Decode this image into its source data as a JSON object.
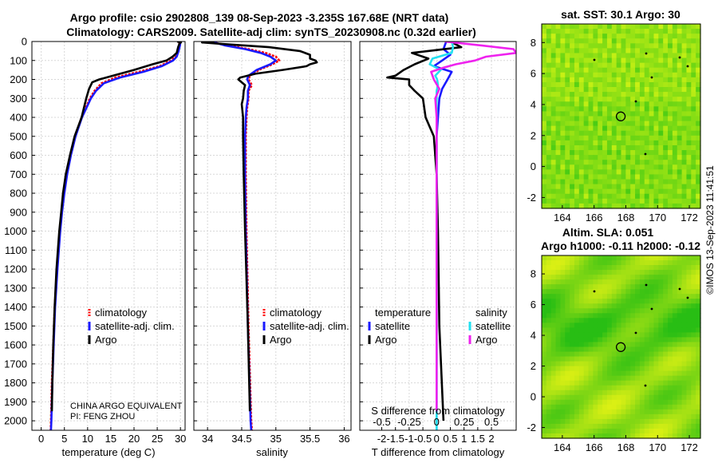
{
  "title_line1": "Argo profile: csio 2902808_139 08-Sep-2023 -3.235S 167.68E (NRT data)",
  "title_line2": "Climatology: CARS2009. Satellite-adj clim: synTS_20230908.nc (0.32d earlier)",
  "watermark": "©IMOS 13-Sep-2023 11:41:51",
  "pi_line1": "CHINA ARGO EQUIVALENT",
  "pi_line2": "PI: FENG ZHOU",
  "colors": {
    "climatology": "#ff0000",
    "satadj": "#1a1aff",
    "argo": "#000000",
    "sat_t": "#1a1aff",
    "sat_s": "#22e0f0",
    "argo_s": "#ee22ee"
  },
  "chart_data": [
    {
      "id": "temperature",
      "type": "line",
      "xlabel": "temperature (deg C)",
      "xlim": [
        -2,
        31
      ],
      "ylim": [
        2050,
        0
      ],
      "xticks": [
        "0",
        "5",
        "10",
        "15",
        "20",
        "25",
        "30"
      ],
      "yticks": [
        "0",
        "100",
        "200",
        "300",
        "400",
        "500",
        "600",
        "700",
        "800",
        "900",
        "1000",
        "1100",
        "1200",
        "1300",
        "1400",
        "1500",
        "1600",
        "1700",
        "1800",
        "1900",
        "2000"
      ],
      "legend": [
        "climatology",
        "satellite-adj. clim.",
        "Argo"
      ],
      "series": [
        {
          "name": "climatology",
          "depth": [
            0,
            20,
            50,
            80,
            100,
            130,
            160,
            190,
            220,
            260,
            300,
            400,
            500,
            600,
            700,
            800,
            900,
            1000,
            1200,
            1400,
            1600,
            1800,
            2000,
            2050
          ],
          "values": [
            29.8,
            29.7,
            29.5,
            29.0,
            28.0,
            25.5,
            21.0,
            16.0,
            13.0,
            11.5,
            10.5,
            8.7,
            7.3,
            6.3,
            5.5,
            4.9,
            4.4,
            4.0,
            3.4,
            2.9,
            2.6,
            2.3,
            2.1,
            2.05
          ]
        },
        {
          "name": "satellite-adj. clim.",
          "depth": [
            0,
            20,
            50,
            80,
            100,
            130,
            160,
            190,
            220,
            260,
            300,
            400,
            500,
            600,
            700,
            800,
            900,
            1000,
            1200,
            1400,
            1600,
            1800,
            2000,
            2050
          ],
          "values": [
            30.0,
            29.9,
            29.6,
            29.2,
            28.4,
            26.0,
            22.0,
            17.0,
            13.5,
            11.8,
            10.7,
            8.8,
            7.4,
            6.4,
            5.6,
            5.0,
            4.5,
            4.1,
            3.5,
            3.0,
            2.7,
            2.4,
            2.2,
            2.1
          ]
        },
        {
          "name": "Argo",
          "depth": [
            0,
            5,
            10,
            30,
            60,
            80,
            100,
            120,
            150,
            180,
            200,
            215,
            250,
            300,
            350,
            400,
            500,
            600,
            700,
            800,
            900,
            1000,
            1200,
            1400,
            1600,
            1800,
            1950
          ],
          "values": [
            29.3,
            30.1,
            29.8,
            29.5,
            29.2,
            28.3,
            27.0,
            24.0,
            20.0,
            15.5,
            12.5,
            11.0,
            10.3,
            9.7,
            9.2,
            8.7,
            7.2,
            6.2,
            5.3,
            4.7,
            4.3,
            3.9,
            3.3,
            2.9,
            2.6,
            2.4,
            2.3
          ]
        }
      ]
    },
    {
      "id": "salinity",
      "type": "line",
      "xlabel": "salinity",
      "xlim": [
        33.8,
        36.1
      ],
      "ylim": [
        2050,
        0
      ],
      "xticks": [
        "34",
        "34.5",
        "35",
        "35.5",
        "36"
      ],
      "legend": [
        "climatology",
        "satellite-adj. clim.",
        "Argo"
      ],
      "series": [
        {
          "name": "climatology",
          "depth": [
            0,
            20,
            40,
            60,
            80,
            100,
            120,
            150,
            180,
            200,
            230,
            260,
            300,
            350,
            400,
            500,
            700,
            1000,
            1500,
            2000,
            2050
          ],
          "values": [
            34.02,
            34.3,
            34.6,
            34.85,
            35.0,
            35.05,
            34.95,
            34.75,
            34.62,
            34.6,
            34.65,
            34.6,
            34.6,
            34.58,
            34.57,
            34.56,
            34.56,
            34.57,
            34.6,
            34.64,
            34.65
          ]
        },
        {
          "name": "satellite-adj. clim.",
          "depth": [
            0,
            20,
            40,
            60,
            80,
            100,
            120,
            150,
            180,
            200,
            230,
            260,
            300,
            350,
            400,
            500,
            700,
            1000,
            1500,
            2000,
            2050
          ],
          "values": [
            34.05,
            34.25,
            34.55,
            34.78,
            34.92,
            35.0,
            34.92,
            34.72,
            34.6,
            34.58,
            34.62,
            34.59,
            34.59,
            34.57,
            34.56,
            34.55,
            34.55,
            34.56,
            34.59,
            34.63,
            34.64
          ]
        },
        {
          "name": "Argo",
          "depth": [
            0,
            5,
            15,
            30,
            50,
            70,
            90,
            100,
            110,
            120,
            130,
            150,
            170,
            190,
            200,
            215,
            230,
            260,
            300,
            330,
            400,
            500,
            700,
            1000,
            1500,
            1950
          ],
          "values": [
            34.1,
            33.92,
            34.3,
            34.9,
            35.35,
            35.5,
            35.5,
            35.58,
            35.6,
            35.5,
            35.45,
            35.1,
            34.7,
            34.48,
            34.45,
            34.5,
            34.55,
            34.53,
            34.52,
            34.5,
            34.52,
            34.52,
            34.53,
            34.55,
            34.59,
            34.62
          ]
        }
      ]
    },
    {
      "id": "difference",
      "type": "line",
      "xlabel": "T difference from climatology",
      "xlabel_top": "S difference from climatology",
      "xlim": [
        -2.8,
        2.9
      ],
      "ylim": [
        2050,
        0
      ],
      "xticks": [
        "-2",
        "-1.5",
        "-1",
        "-0.5",
        "0",
        "0.5",
        "1",
        "1.5",
        "2"
      ],
      "xticks_s": [
        "-0.5",
        "-0.25",
        "0",
        "0.25",
        "0.5"
      ],
      "legend_t_header": "temperature",
      "legend_s_header": "salinity",
      "legend_t": [
        "satellite",
        "Argo"
      ],
      "legend_s": [
        "satellite",
        "Argo"
      ],
      "series": [
        {
          "name": "T satellite",
          "depth": [
            0,
            40,
            70,
            100,
            130,
            160,
            200,
            250,
            300,
            400,
            500,
            700,
            1000,
            1500,
            2000,
            2050
          ],
          "values": [
            0.35,
            0.25,
            0.5,
            0.2,
            -0.1,
            0.55,
            0.4,
            0.2,
            0.1,
            0.05,
            0.0,
            0.0,
            0.0,
            0.0,
            0.0,
            0.0
          ]
        },
        {
          "name": "T Argo",
          "depth": [
            0,
            30,
            60,
            90,
            120,
            150,
            180,
            190,
            200,
            230,
            260,
            300,
            400,
            500,
            700,
            1000,
            1500,
            2000
          ],
          "values": [
            0.5,
            0.9,
            -0.9,
            -0.3,
            -0.8,
            -1.2,
            -1.5,
            -1.8,
            -1.0,
            -1.0,
            -0.8,
            -0.5,
            -0.4,
            -0.1,
            0.0,
            0.05,
            0.1,
            0.25
          ]
        },
        {
          "name": "S satellite",
          "depth": [
            0,
            30,
            60,
            90,
            120,
            150,
            180,
            200,
            230,
            260,
            300,
            400,
            500,
            700,
            1000,
            1500,
            2000,
            2050
          ],
          "values": [
            0.55,
            0.6,
            0.55,
            -0.15,
            -0.25,
            0.15,
            -0.05,
            0.02,
            0.05,
            0.0,
            0.0,
            0.0,
            0.0,
            0.0,
            0.0,
            0.0,
            0.0,
            0.0
          ]
        },
        {
          "name": "S Argo",
          "depth": [
            0,
            20,
            40,
            60,
            80,
            100,
            120,
            140,
            160,
            200,
            250,
            300,
            400,
            500,
            700,
            1000,
            1500,
            1950
          ],
          "values": [
            0.3,
            1.6,
            2.8,
            2.9,
            1.8,
            1.4,
            0.7,
            0.2,
            -0.2,
            -0.1,
            0.1,
            -0.05,
            0.0,
            0.0,
            0.0,
            0.0,
            0.0,
            0.0
          ]
        }
      ]
    },
    {
      "id": "sst_map",
      "type": "heatmap",
      "title": "sat. SST: 30.1 Argo: 30",
      "xticks": [
        "164",
        "166",
        "168",
        "170",
        "172"
      ],
      "yticks": [
        "8",
        "6",
        "4",
        "2",
        "0",
        "-2"
      ],
      "xlim": [
        162.7,
        172.7
      ],
      "ylim": [
        -2.7,
        9.2
      ],
      "argo_lon": 167.68,
      "argo_lat": 3.235
    },
    {
      "id": "sla_map",
      "type": "heatmap",
      "title_line1": "Altim. SLA: 0.051",
      "title_line2": "Argo h1000: -0.11 h2000: -0.12",
      "xticks": [
        "164",
        "166",
        "168",
        "170",
        "172"
      ],
      "yticks": [
        "8",
        "6",
        "4",
        "2",
        "0",
        "-2"
      ],
      "xlim": [
        162.7,
        172.7
      ],
      "ylim": [
        -2.7,
        9.2
      ],
      "argo_lon": 167.68,
      "argo_lat": 3.235
    }
  ]
}
